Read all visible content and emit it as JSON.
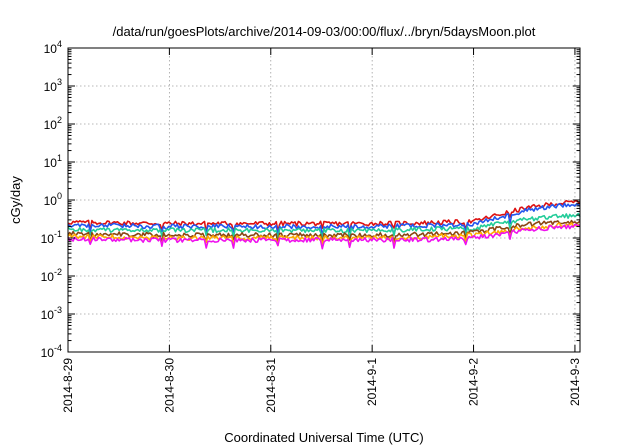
{
  "chart_data": {
    "type": "line",
    "title": "/data/run/goesPlots/archive/2014-09-03/00:00/flux/../bryn/5daysMoon.plot",
    "xlabel": "Coordinated Universal Time (UTC)",
    "ylabel": "cGy/day",
    "yscale": "log",
    "ylim": [
      0.0001,
      10000
    ],
    "xlim": [
      0,
      5.05
    ],
    "grid": true,
    "x_ticks": [
      {
        "value": 0,
        "label": "2014-8-29"
      },
      {
        "value": 1,
        "label": "2014-8-30"
      },
      {
        "value": 2,
        "label": "2014-8-31"
      },
      {
        "value": 3,
        "label": "2014-9-1"
      },
      {
        "value": 4,
        "label": "2014-9-2"
      },
      {
        "value": 5,
        "label": "2014-9-3"
      }
    ],
    "y_ticks": [
      {
        "value": 0.0001,
        "base": "10",
        "exp": "-4"
      },
      {
        "value": 0.001,
        "base": "10",
        "exp": "-3"
      },
      {
        "value": 0.01,
        "base": "10",
        "exp": "-2"
      },
      {
        "value": 0.1,
        "base": "10",
        "exp": "-1"
      },
      {
        "value": 1,
        "base": "10",
        "exp": "0"
      },
      {
        "value": 10,
        "base": "10",
        "exp": "1"
      },
      {
        "value": 100,
        "base": "10",
        "exp": "2"
      },
      {
        "value": 1000,
        "base": "10",
        "exp": "3"
      },
      {
        "value": 10000,
        "base": "10",
        "exp": "4"
      }
    ],
    "series": [
      {
        "color": "#dd1111",
        "x": [
          0,
          0.5,
          1,
          1.5,
          2,
          2.5,
          3,
          3.5,
          4,
          4.2,
          4.5,
          4.8,
          5.05
        ],
        "y": [
          0.26,
          0.25,
          0.24,
          0.24,
          0.24,
          0.24,
          0.24,
          0.25,
          0.27,
          0.38,
          0.6,
          0.8,
          0.9
        ]
      },
      {
        "color": "#2255ee",
        "x": [
          0,
          0.5,
          1,
          1.5,
          2,
          2.5,
          3,
          3.5,
          4,
          4.2,
          4.5,
          4.8,
          5.05
        ],
        "y": [
          0.22,
          0.21,
          0.2,
          0.2,
          0.2,
          0.2,
          0.2,
          0.21,
          0.23,
          0.32,
          0.52,
          0.7,
          0.78
        ]
      },
      {
        "color": "#22cc99",
        "x": [
          0,
          0.5,
          1,
          1.5,
          2,
          2.5,
          3,
          3.5,
          4,
          4.2,
          4.5,
          4.8,
          5.05
        ],
        "y": [
          0.17,
          0.16,
          0.16,
          0.16,
          0.16,
          0.16,
          0.16,
          0.17,
          0.18,
          0.23,
          0.3,
          0.36,
          0.4
        ]
      },
      {
        "color": "#8b4513",
        "x": [
          0,
          0.5,
          1,
          1.5,
          2,
          2.5,
          3,
          3.5,
          4,
          4.2,
          4.5,
          4.8,
          5.05
        ],
        "y": [
          0.13,
          0.125,
          0.12,
          0.12,
          0.12,
          0.12,
          0.12,
          0.125,
          0.14,
          0.17,
          0.22,
          0.26,
          0.28
        ]
      },
      {
        "color": "#ffaa00",
        "x": [
          0,
          0.5,
          1,
          1.5,
          2,
          2.5,
          3,
          3.5,
          4,
          4.2,
          4.5,
          4.8,
          5.05
        ],
        "y": [
          0.11,
          0.105,
          0.1,
          0.1,
          0.1,
          0.1,
          0.1,
          0.105,
          0.12,
          0.14,
          0.18,
          0.21,
          0.23
        ]
      },
      {
        "color": "#ee11ee",
        "x": [
          0,
          0.5,
          1,
          1.5,
          2,
          2.5,
          3,
          3.5,
          4,
          4.2,
          4.5,
          4.8,
          5.05
        ],
        "y": [
          0.095,
          0.09,
          0.088,
          0.088,
          0.088,
          0.088,
          0.088,
          0.09,
          0.1,
          0.12,
          0.16,
          0.19,
          0.2
        ]
      }
    ]
  }
}
